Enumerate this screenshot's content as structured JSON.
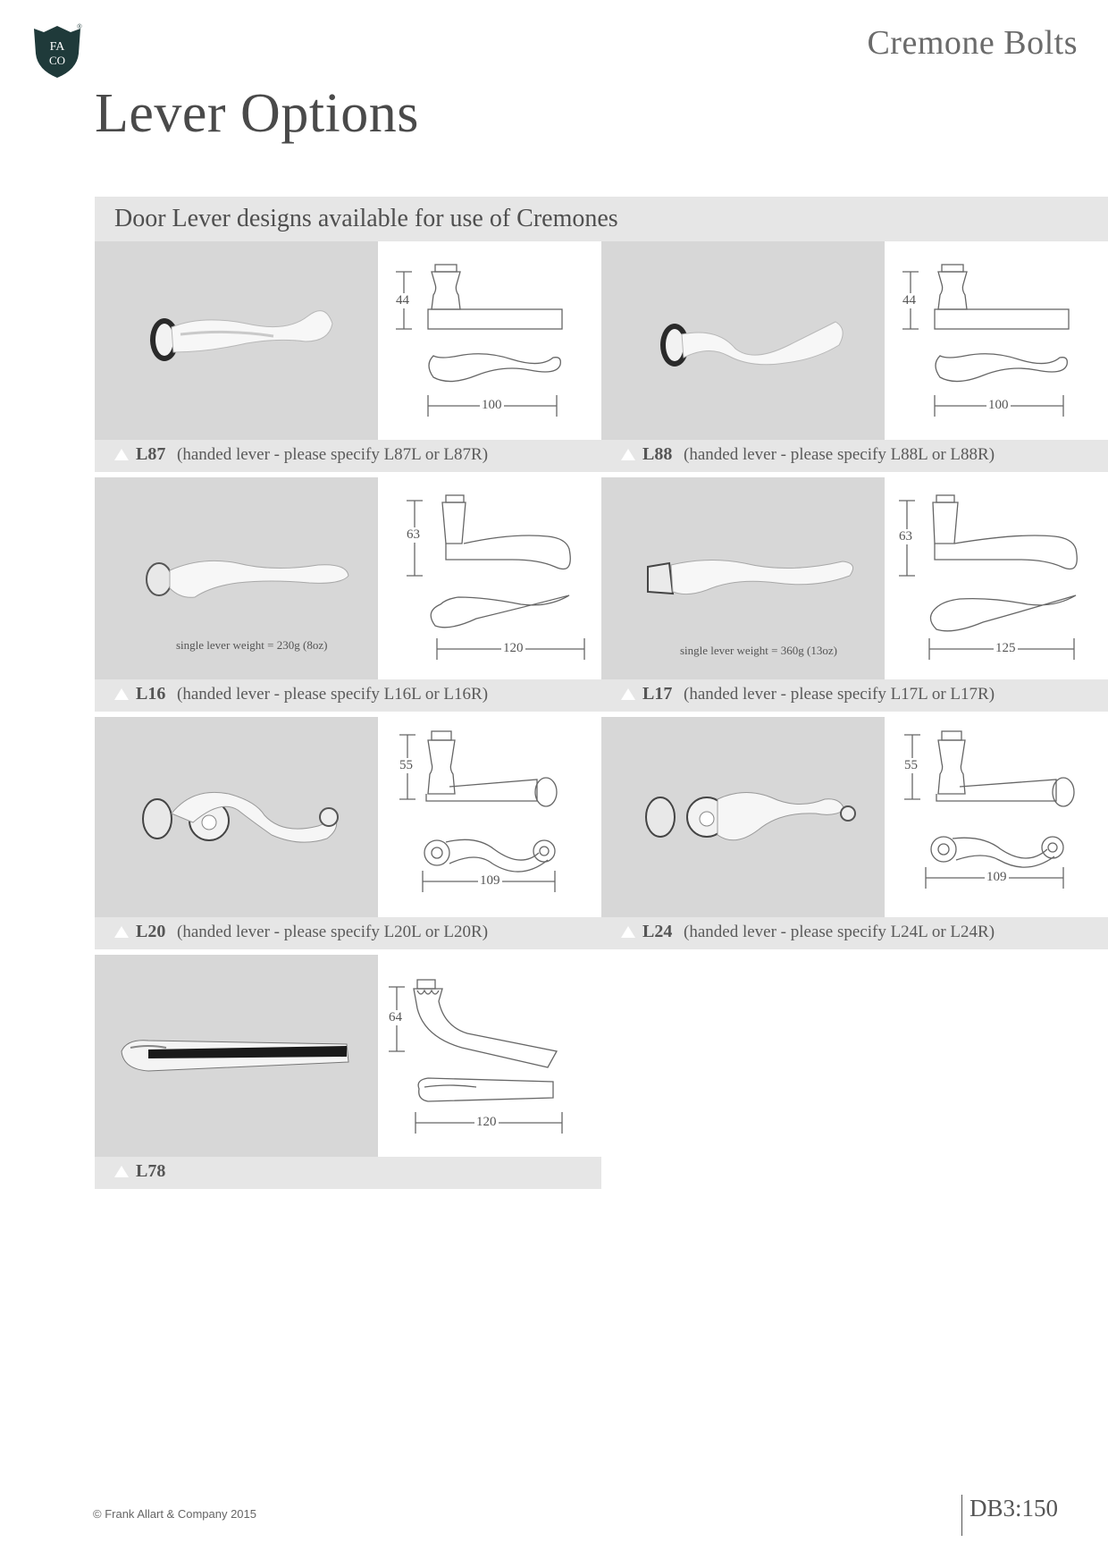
{
  "logo": {
    "top": "FA",
    "bottom": "CO",
    "registered": "®",
    "color": "#1f3a3a"
  },
  "header": {
    "section": "Cremone Bolts"
  },
  "page": {
    "title": "Lever Options",
    "subtitle": "Door Lever designs available for use of Cremones"
  },
  "products": [
    {
      "code": "L87",
      "description": "(handed lever - please specify L87L or L87R)",
      "height": "44",
      "width": "100",
      "weight": ""
    },
    {
      "code": "L88",
      "description": "(handed lever - please specify L88L or L88R)",
      "height": "44",
      "width": "100",
      "weight": ""
    },
    {
      "code": "L16",
      "description": "(handed lever - please specify L16L or L16R)",
      "height": "63",
      "width": "120",
      "weight": "single lever weight = 230g (8oz)"
    },
    {
      "code": "L17",
      "description": "(handed lever - please specify L17L or L17R)",
      "height": "63",
      "width": "125",
      "weight": "single lever weight = 360g (13oz)"
    },
    {
      "code": "L20",
      "description": "(handed lever - please specify L20L or L20R)",
      "height": "55",
      "width": "109",
      "weight": ""
    },
    {
      "code": "L24",
      "description": "(handed lever - please specify L24L or L24R)",
      "height": "55",
      "width": "109",
      "weight": ""
    },
    {
      "code": "L78",
      "description": "",
      "height": "64",
      "width": "120",
      "weight": ""
    }
  ],
  "footer": {
    "copyright": "© Frank Allart & Company 2015",
    "page_ref": "DB3:150"
  }
}
